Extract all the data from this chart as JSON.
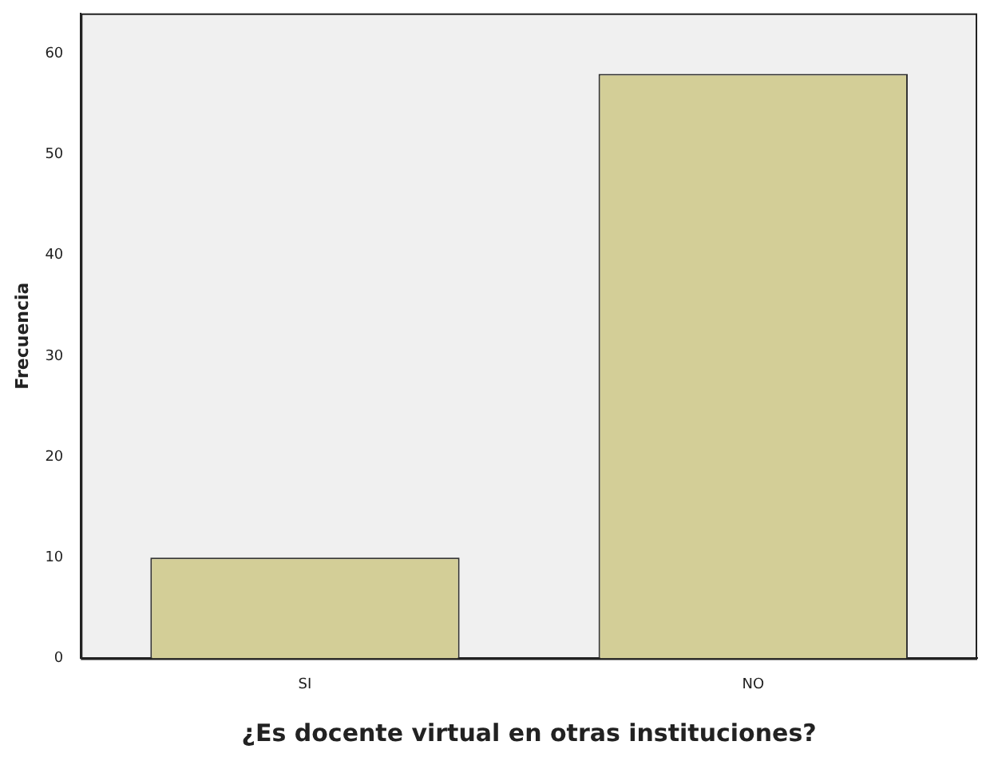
{
  "chart_data": {
    "type": "bar",
    "xlabel": "¿Es docente virtual en otras instituciones?",
    "ylabel": "Frecuencia",
    "categories": [
      "SI",
      "NO"
    ],
    "values": [
      10,
      58
    ],
    "color": "#d3ce97",
    "ylim": [
      0,
      64
    ],
    "yticks": [
      0,
      10,
      20,
      30,
      40,
      50,
      60
    ],
    "grid": false,
    "legend": false
  }
}
